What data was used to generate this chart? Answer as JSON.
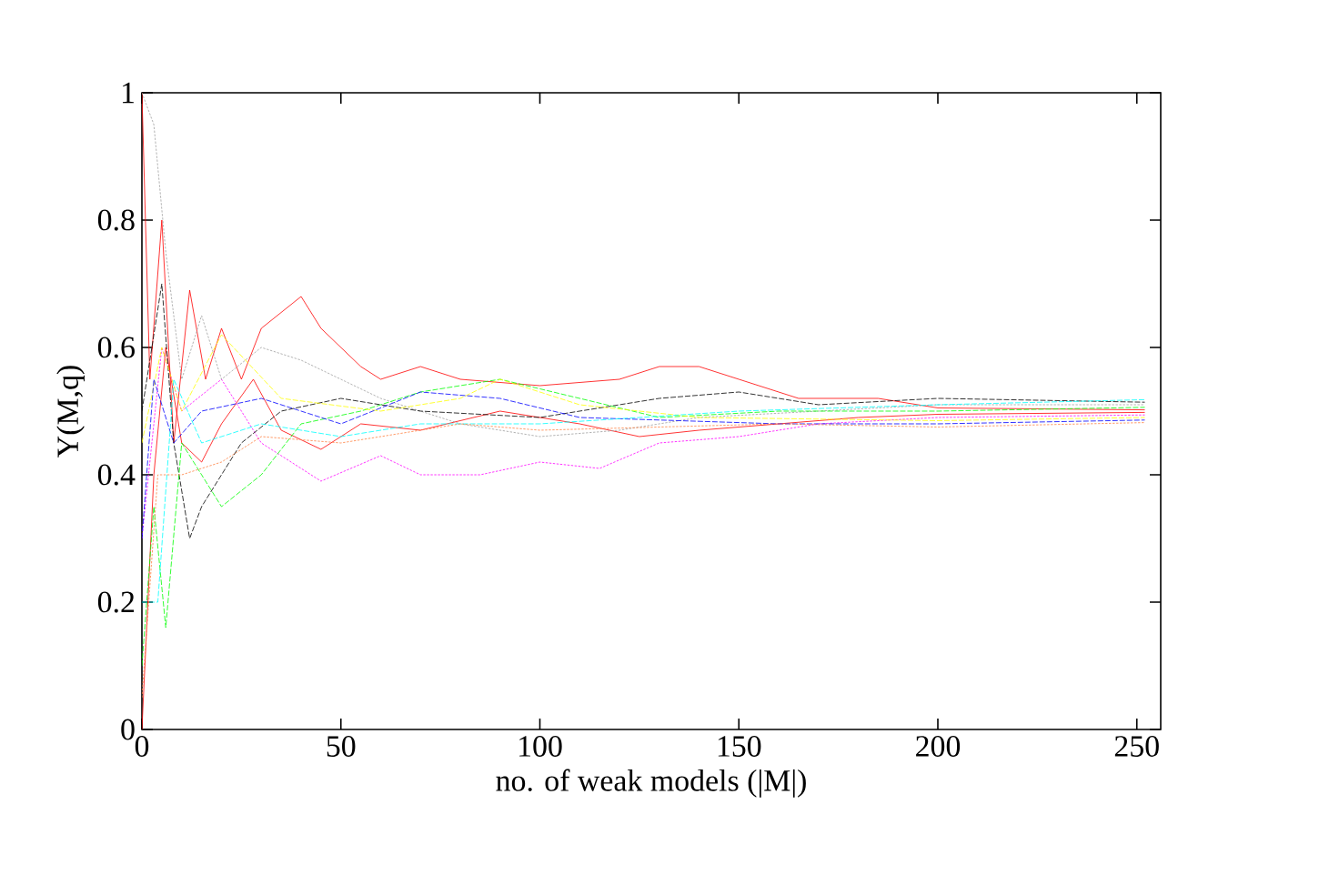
{
  "chart_data": {
    "type": "line",
    "xlabel": "no. of weak models (|M|)",
    "ylabel": "Y(M,q)",
    "xlim": [
      0,
      256
    ],
    "ylim": [
      0,
      1
    ],
    "xticks": [
      0,
      50,
      100,
      150,
      200,
      250
    ],
    "yticks": [
      0,
      0.2,
      0.4,
      0.6,
      0.8,
      1
    ],
    "series": [
      {
        "color": "#ff0000",
        "line_style": "solid",
        "x": [
          0,
          2,
          5,
          8,
          12,
          16,
          20,
          25,
          30,
          40,
          45,
          55,
          60,
          70,
          80,
          100,
          120,
          130,
          140,
          150,
          165,
          185,
          200,
          252
        ],
        "values": [
          1.0,
          0.55,
          0.8,
          0.45,
          0.69,
          0.55,
          0.63,
          0.55,
          0.63,
          0.68,
          0.63,
          0.57,
          0.55,
          0.57,
          0.55,
          0.54,
          0.55,
          0.57,
          0.57,
          0.55,
          0.52,
          0.52,
          0.505,
          0.502
        ]
      },
      {
        "color": "#ff0000",
        "line_style": "solid",
        "x": [
          0,
          3,
          6,
          10,
          15,
          20,
          28,
          35,
          45,
          55,
          70,
          90,
          110,
          125,
          140,
          160,
          180,
          200,
          252
        ],
        "values": [
          0.0,
          0.4,
          0.6,
          0.45,
          0.42,
          0.48,
          0.55,
          0.47,
          0.44,
          0.48,
          0.47,
          0.5,
          0.48,
          0.46,
          0.47,
          0.48,
          0.49,
          0.495,
          0.498
        ]
      },
      {
        "color": "#ff00ff",
        "line_style": "dotted",
        "x": [
          0,
          5,
          10,
          20,
          30,
          45,
          60,
          70,
          85,
          100,
          115,
          130,
          150,
          170,
          200,
          252
        ],
        "values": [
          0.3,
          0.6,
          0.5,
          0.55,
          0.45,
          0.39,
          0.43,
          0.4,
          0.4,
          0.42,
          0.41,
          0.45,
          0.46,
          0.48,
          0.49,
          0.494
        ]
      },
      {
        "color": "#a0a0a0",
        "line_style": "dotted",
        "x": [
          0,
          3,
          6,
          10,
          15,
          20,
          30,
          40,
          50,
          60,
          80,
          100,
          120,
          140,
          170,
          200,
          252
        ],
        "values": [
          1.0,
          0.95,
          0.75,
          0.55,
          0.65,
          0.55,
          0.6,
          0.58,
          0.55,
          0.52,
          0.48,
          0.46,
          0.47,
          0.49,
          0.5,
          0.51,
          0.51
        ]
      },
      {
        "color": "#000000",
        "line_style": "dashed",
        "x": [
          0,
          5,
          8,
          12,
          15,
          25,
          35,
          50,
          70,
          100,
          130,
          150,
          170,
          200,
          252
        ],
        "values": [
          0.5,
          0.7,
          0.45,
          0.3,
          0.35,
          0.45,
          0.5,
          0.52,
          0.5,
          0.49,
          0.52,
          0.53,
          0.51,
          0.52,
          0.514
        ]
      },
      {
        "color": "#00ff00",
        "line_style": "dashed",
        "x": [
          0,
          3,
          6,
          10,
          20,
          30,
          40,
          55,
          70,
          90,
          110,
          130,
          160,
          200,
          252
        ],
        "values": [
          0.1,
          0.35,
          0.16,
          0.45,
          0.35,
          0.4,
          0.48,
          0.5,
          0.53,
          0.55,
          0.52,
          0.49,
          0.5,
          0.5,
          0.506
        ]
      },
      {
        "color": "#ffff00",
        "line_style": "dashed",
        "x": [
          0,
          5,
          10,
          20,
          35,
          60,
          80,
          90,
          110,
          140,
          200,
          252
        ],
        "values": [
          0.45,
          0.6,
          0.5,
          0.62,
          0.52,
          0.5,
          0.52,
          0.55,
          0.51,
          0.49,
          0.485,
          0.49
        ]
      },
      {
        "color": "#0000ff",
        "line_style": "dashed",
        "x": [
          0,
          3,
          8,
          15,
          30,
          50,
          70,
          90,
          110,
          160,
          200,
          252
        ],
        "values": [
          0.3,
          0.55,
          0.45,
          0.5,
          0.52,
          0.48,
          0.53,
          0.52,
          0.49,
          0.48,
          0.48,
          0.486
        ]
      },
      {
        "color": "#00ffff",
        "line_style": "dashed",
        "x": [
          0,
          4,
          8,
          15,
          30,
          50,
          70,
          100,
          150,
          200,
          252
        ],
        "values": [
          0.2,
          0.2,
          0.55,
          0.45,
          0.48,
          0.46,
          0.48,
          0.48,
          0.5,
          0.51,
          0.518
        ]
      },
      {
        "color": "#ff8040",
        "line_style": "dotted",
        "x": [
          0,
          4,
          10,
          20,
          30,
          50,
          80,
          100,
          160,
          200,
          252
        ],
        "values": [
          0.05,
          0.4,
          0.4,
          0.42,
          0.46,
          0.45,
          0.48,
          0.47,
          0.48,
          0.475,
          0.482
        ]
      }
    ]
  }
}
